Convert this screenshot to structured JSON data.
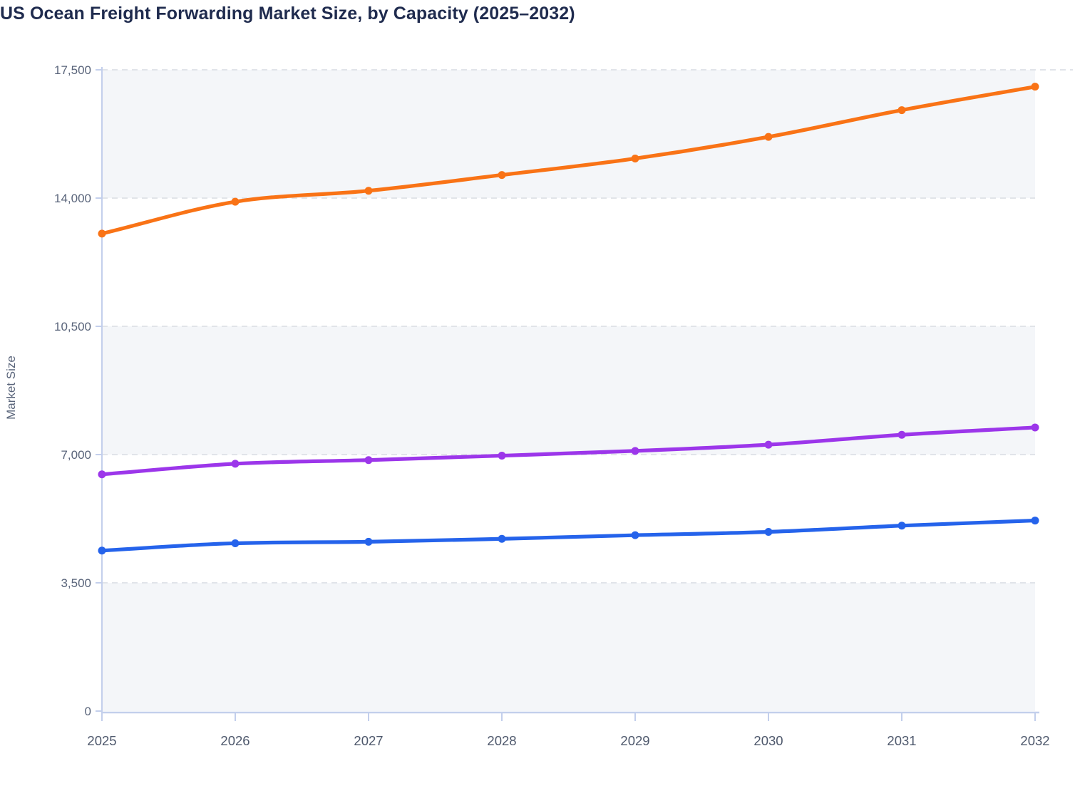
{
  "chart_data": {
    "type": "line",
    "title": "US Ocean Freight Forwarding Market Size, by Capacity (2025–2032)",
    "xlabel": "",
    "ylabel": "Market Size",
    "x": [
      2025,
      2026,
      2027,
      2028,
      2029,
      2030,
      2031,
      2032
    ],
    "series": [
      {
        "name": "series-orange",
        "color": "#f97316",
        "values": [
          13030,
          13900,
          14200,
          14630,
          15080,
          15670,
          16400,
          17040
        ]
      },
      {
        "name": "series-purple",
        "color": "#9c36ea",
        "values": [
          6460,
          6750,
          6850,
          6970,
          7100,
          7270,
          7540,
          7740
        ]
      },
      {
        "name": "series-blue",
        "color": "#2563eb",
        "values": [
          4380,
          4580,
          4620,
          4700,
          4800,
          4890,
          5060,
          5200
        ]
      }
    ],
    "ylim": [
      0,
      17500
    ],
    "yticks": [
      0,
      3500,
      7000,
      10500,
      14000,
      17500
    ],
    "grid": "horizontal dashed",
    "legend": "none",
    "marker": "circle",
    "plot_band_fill": "#f4f6f9",
    "axis_color": "#c3cfec",
    "gridline_color": "#e1e4e9",
    "tick_label_color": "#59647a",
    "x_tick_label_color": "#4e586c",
    "title_color": "#1f2b4e"
  }
}
